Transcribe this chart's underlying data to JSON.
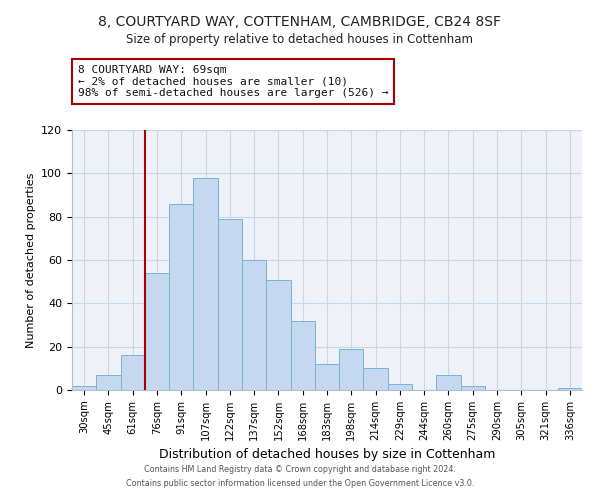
{
  "title1": "8, COURTYARD WAY, COTTENHAM, CAMBRIDGE, CB24 8SF",
  "title2": "Size of property relative to detached houses in Cottenham",
  "xlabel": "Distribution of detached houses by size in Cottenham",
  "ylabel": "Number of detached properties",
  "bar_labels": [
    "30sqm",
    "45sqm",
    "61sqm",
    "76sqm",
    "91sqm",
    "107sqm",
    "122sqm",
    "137sqm",
    "152sqm",
    "168sqm",
    "183sqm",
    "198sqm",
    "214sqm",
    "229sqm",
    "244sqm",
    "260sqm",
    "275sqm",
    "290sqm",
    "305sqm",
    "321sqm",
    "336sqm"
  ],
  "bar_heights": [
    2,
    7,
    16,
    54,
    86,
    98,
    79,
    60,
    51,
    32,
    12,
    19,
    10,
    3,
    0,
    7,
    2,
    0,
    0,
    0,
    1
  ],
  "bar_color": "#c5d8f0",
  "bar_edge_color": "#7ab4d4",
  "vline_x_index": 2,
  "vline_color": "#aa0000",
  "annotation_title": "8 COURTYARD WAY: 69sqm",
  "annotation_line1": "← 2% of detached houses are smaller (10)",
  "annotation_line2": "98% of semi-detached houses are larger (526) →",
  "annotation_box_edgecolor": "#aa0000",
  "ylim": [
    0,
    120
  ],
  "yticks": [
    0,
    20,
    40,
    60,
    80,
    100,
    120
  ],
  "grid_color": "#c8d8ec",
  "bg_color": "#eef2f8",
  "footer1": "Contains HM Land Registry data © Crown copyright and database right 2024.",
  "footer2": "Contains public sector information licensed under the Open Government Licence v3.0."
}
